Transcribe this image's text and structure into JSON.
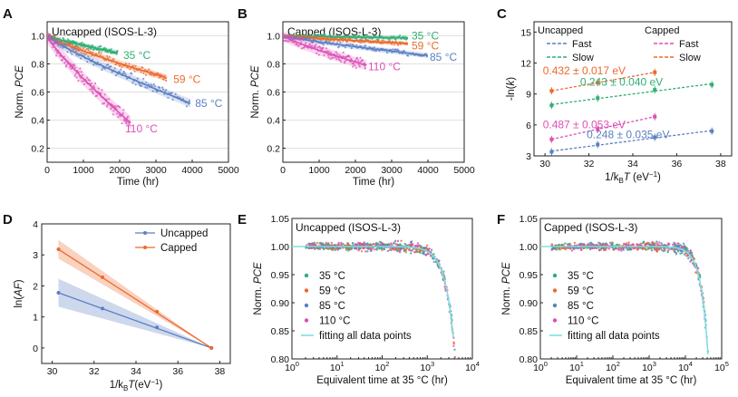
{
  "colors": {
    "c35": "#2fae73",
    "c59": "#ec6a2e",
    "c85": "#5b7fc4",
    "c110": "#de4fb7",
    "uncapped": "#5b7fc4",
    "capped": "#ec6a2e",
    "fitline": "#7fdde6"
  },
  "chart_data": [
    {
      "panel": "A",
      "type": "scatter",
      "inset_title": "Uncapped (ISOS-L-3)",
      "xlabel": "Time (hr)",
      "ylabel_prefix": "Norm. ",
      "ylabel_em": "PCE",
      "xlim": [
        0,
        5000
      ],
      "ylim": [
        0.1,
        1.1
      ],
      "xticks": [
        0,
        1000,
        2000,
        3000,
        4000,
        5000
      ],
      "yticks": [
        0.2,
        0.4,
        0.6,
        0.8,
        1.0
      ],
      "ytick_labels": [
        "0.2",
        "0.4",
        "0.6",
        "0.8",
        "1.0"
      ],
      "series": [
        {
          "name": "35 °C",
          "color_key": "c35",
          "tmax": 1950,
          "end": 0.88,
          "noise": 0.015
        },
        {
          "name": "59 °C",
          "color_key": "c59",
          "tmax": 3300,
          "end": 0.7,
          "noise": 0.02
        },
        {
          "name": "85 °C",
          "color_key": "c85",
          "tmax": 3950,
          "end": 0.52,
          "noise": 0.025
        },
        {
          "name": "110 °C",
          "color_key": "c110",
          "tmax": 2300,
          "end": 0.38,
          "noise": 0.04
        }
      ],
      "series_labels": [
        {
          "text": "35 °C",
          "color_key": "c35",
          "x": 2100,
          "y": 0.86
        },
        {
          "text": "59 °C",
          "color_key": "c59",
          "x": 3480,
          "y": 0.69
        },
        {
          "text": "85 °C",
          "color_key": "c85",
          "x": 4080,
          "y": 0.52
        },
        {
          "text": "110 °C",
          "color_key": "c110",
          "x": 2150,
          "y": 0.34
        }
      ]
    },
    {
      "panel": "B",
      "type": "scatter",
      "inset_title": "Capped (ISOS-L-3)",
      "xlabel": "Time (hr)",
      "ylabel_prefix": "Norm. ",
      "ylabel_em": "PCE",
      "xlim": [
        0,
        5000
      ],
      "ylim": [
        0.1,
        1.1
      ],
      "xticks": [
        0,
        1000,
        2000,
        3000,
        4000,
        5000
      ],
      "yticks": [
        0.2,
        0.4,
        0.6,
        0.8,
        1.0
      ],
      "ytick_labels": [
        "0.2",
        "0.4",
        "0.6",
        "0.8",
        "1.0"
      ],
      "series": [
        {
          "name": "35 °C",
          "color_key": "c35",
          "tmax": 3450,
          "end": 0.985,
          "noise": 0.012
        },
        {
          "name": "59 °C",
          "color_key": "c59",
          "tmax": 3450,
          "end": 0.945,
          "noise": 0.012
        },
        {
          "name": "85 °C",
          "color_key": "c85",
          "tmax": 4000,
          "end": 0.86,
          "noise": 0.015
        },
        {
          "name": "110 °C",
          "color_key": "c110",
          "tmax": 2300,
          "end": 0.79,
          "noise": 0.03
        }
      ],
      "series_labels": [
        {
          "text": "35 °C",
          "color_key": "c35",
          "x": 3550,
          "y": 1.0
        },
        {
          "text": "59 °C",
          "color_key": "c59",
          "x": 3550,
          "y": 0.93
        },
        {
          "text": "85 °C",
          "color_key": "c85",
          "x": 4050,
          "y": 0.85
        },
        {
          "text": "110 °C",
          "color_key": "c110",
          "x": 2350,
          "y": 0.78
        }
      ]
    },
    {
      "panel": "C",
      "type": "scatter",
      "xlabel_prefix": "1/k",
      "xlabel_sub": "B",
      "xlabel_em": "T",
      "xlabel_suffix": " (eV",
      "xlabel_sup": "−1",
      "xlabel_close": ")",
      "ylabel": "-ln(k)",
      "xlim": [
        29.5,
        38.5
      ],
      "ylim": [
        3,
        16
      ],
      "xticks": [
        30,
        32,
        34,
        36,
        38
      ],
      "yticks": [
        3,
        6,
        9,
        12,
        15
      ],
      "legend_headers": [
        "Uncapped",
        "Capped"
      ],
      "legend_items": [
        "Fast",
        "Slow",
        "Fast",
        "Slow"
      ],
      "legend_color_keys": [
        "c85",
        "c35",
        "c110",
        "c59"
      ],
      "series": [
        {
          "name": "Uncapped Fast",
          "color_key": "c85",
          "x": [
            30.3,
            32.4,
            35.0,
            37.6
          ],
          "y": [
            3.4,
            4.1,
            4.8,
            5.4
          ]
        },
        {
          "name": "Uncapped Slow",
          "color_key": "c35",
          "x": [
            30.3,
            32.4,
            35.0,
            37.6
          ],
          "y": [
            7.9,
            8.6,
            9.4,
            9.9
          ]
        },
        {
          "name": "Capped Fast",
          "color_key": "c110",
          "x": [
            30.3,
            32.4,
            35.0
          ],
          "y": [
            4.6,
            5.6,
            6.8
          ]
        },
        {
          "name": "Capped Slow",
          "color_key": "c59",
          "x": [
            30.3,
            32.4,
            35.0
          ],
          "y": [
            9.3,
            10.1,
            11.1
          ]
        }
      ],
      "annotations": [
        {
          "text": "0.432 ± 0.017 eV",
          "color_key": "c59",
          "x": 29.9,
          "y": 10.9
        },
        {
          "text": "0.243 ± 0.040 eV",
          "color_key": "c35",
          "x": 31.6,
          "y": 9.8
        },
        {
          "text": "0.487 ± 0.053 eV",
          "color_key": "c110",
          "x": 29.9,
          "y": 5.7
        },
        {
          "text": "0.248 ± 0.035 eV",
          "color_key": "c85",
          "x": 31.9,
          "y": 4.7
        }
      ]
    },
    {
      "panel": "D",
      "type": "line",
      "xlabel_prefix": "1/k",
      "xlabel_sub": "B",
      "xlabel_em": "T",
      "xlabel_suffix": "(eV",
      "xlabel_sup": "−1",
      "xlabel_close": ")",
      "ylabel_prefix": "ln(",
      "ylabel_em": "AF",
      "ylabel_suffix": ")",
      "xlim": [
        29.5,
        38.5
      ],
      "ylim": [
        -0.5,
        4
      ],
      "xticks": [
        30,
        32,
        34,
        36,
        38
      ],
      "yticks": [
        0,
        1,
        2,
        3,
        4
      ],
      "series": [
        {
          "name": "Uncapped",
          "color_key": "uncapped",
          "x": [
            30.3,
            32.4,
            35.0,
            37.6
          ],
          "y": [
            1.78,
            1.27,
            0.66,
            0.0
          ]
        },
        {
          "name": "Capped",
          "color_key": "capped",
          "x": [
            30.3,
            32.4,
            35.0,
            37.6
          ],
          "y": [
            3.18,
            2.28,
            1.17,
            0.0
          ]
        }
      ],
      "legend": [
        "Uncapped",
        "Capped"
      ]
    },
    {
      "panel": "E",
      "type": "scatter",
      "inset_title": "Uncapped (ISOS-L-3)",
      "xlabel": "Equivalent time at 35 °C (hr)",
      "ylabel_prefix": "Norm. ",
      "ylabel_em": "PCE",
      "xscale": "log",
      "xlim_exp": [
        0,
        4
      ],
      "ylim": [
        0.8,
        1.05
      ],
      "xtick_exponents": [
        0,
        1,
        2,
        3,
        4
      ],
      "yticks": [
        0.8,
        0.85,
        0.9,
        0.95,
        1.0,
        1.05
      ],
      "ytick_labels": [
        "0.80",
        "0.85",
        "0.90",
        "0.95",
        "1.00",
        "1.05"
      ],
      "tau_exp": 3.62,
      "legend": [
        "35 °C",
        "59 °C",
        "85 °C",
        "110 °C",
        "fitting all data points"
      ],
      "legend_color_keys": [
        "c35",
        "c59",
        "c85",
        "c110",
        "fitline"
      ]
    },
    {
      "panel": "F",
      "type": "scatter",
      "inset_title": "Capped (ISOS-L-3)",
      "xlabel": "Equivalent time at 35 °C (hr)",
      "ylabel_prefix": "Norm. ",
      "ylabel_em": "PCE",
      "xscale": "log",
      "xlim_exp": [
        0,
        5
      ],
      "ylim": [
        0.8,
        1.05
      ],
      "xtick_exponents": [
        0,
        1,
        2,
        3,
        4,
        5
      ],
      "yticks": [
        0.8,
        0.85,
        0.9,
        0.95,
        1.0,
        1.05
      ],
      "ytick_labels": [
        "0.80",
        "0.85",
        "0.90",
        "0.95",
        "1.00",
        "1.05"
      ],
      "tau_exp": 4.63,
      "legend": [
        "35 °C",
        "59 °C",
        "85 °C",
        "110 °C",
        "fitting all data points"
      ],
      "legend_color_keys": [
        "c35",
        "c59",
        "c85",
        "c110",
        "fitline"
      ]
    }
  ]
}
